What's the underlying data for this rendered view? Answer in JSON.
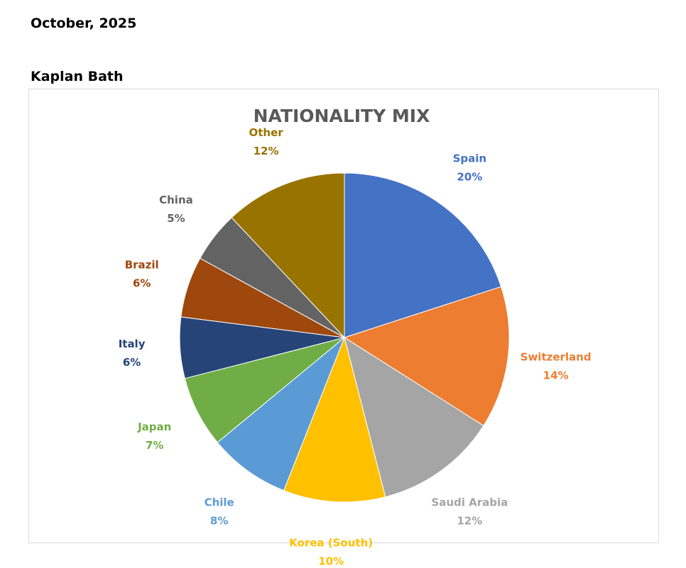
{
  "header": {
    "date": "October, 2025",
    "school": "Kaplan Bath"
  },
  "chart_data": {
    "type": "pie",
    "title": "NATIONALITY MIX",
    "slices": [
      {
        "label": "Spain",
        "value": 20,
        "display": "20%",
        "color": "#4472c4"
      },
      {
        "label": "Switzerland",
        "value": 14,
        "display": "14%",
        "color": "#ed7d31"
      },
      {
        "label": "Saudi Arabia",
        "value": 12,
        "display": "12%",
        "color": "#a5a5a5"
      },
      {
        "label": "Korea (South)",
        "value": 10,
        "display": "10%",
        "color": "#ffc000"
      },
      {
        "label": "Chile",
        "value": 8,
        "display": "8%",
        "color": "#5b9bd5"
      },
      {
        "label": "Japan",
        "value": 7,
        "display": "7%",
        "color": "#70ad47"
      },
      {
        "label": "Italy",
        "value": 6,
        "display": "6%",
        "color": "#264478"
      },
      {
        "label": "Brazil",
        "value": 6,
        "display": "6%",
        "color": "#9e480e"
      },
      {
        "label": "China",
        "value": 5,
        "display": "5%",
        "color": "#636363"
      },
      {
        "label": "Other",
        "value": 12,
        "display": "12%",
        "color": "#997300"
      }
    ],
    "start_angle": "12 o'clock",
    "direction": "clockwise",
    "legend": "none",
    "data_labels": "outside, category name and percentage"
  }
}
